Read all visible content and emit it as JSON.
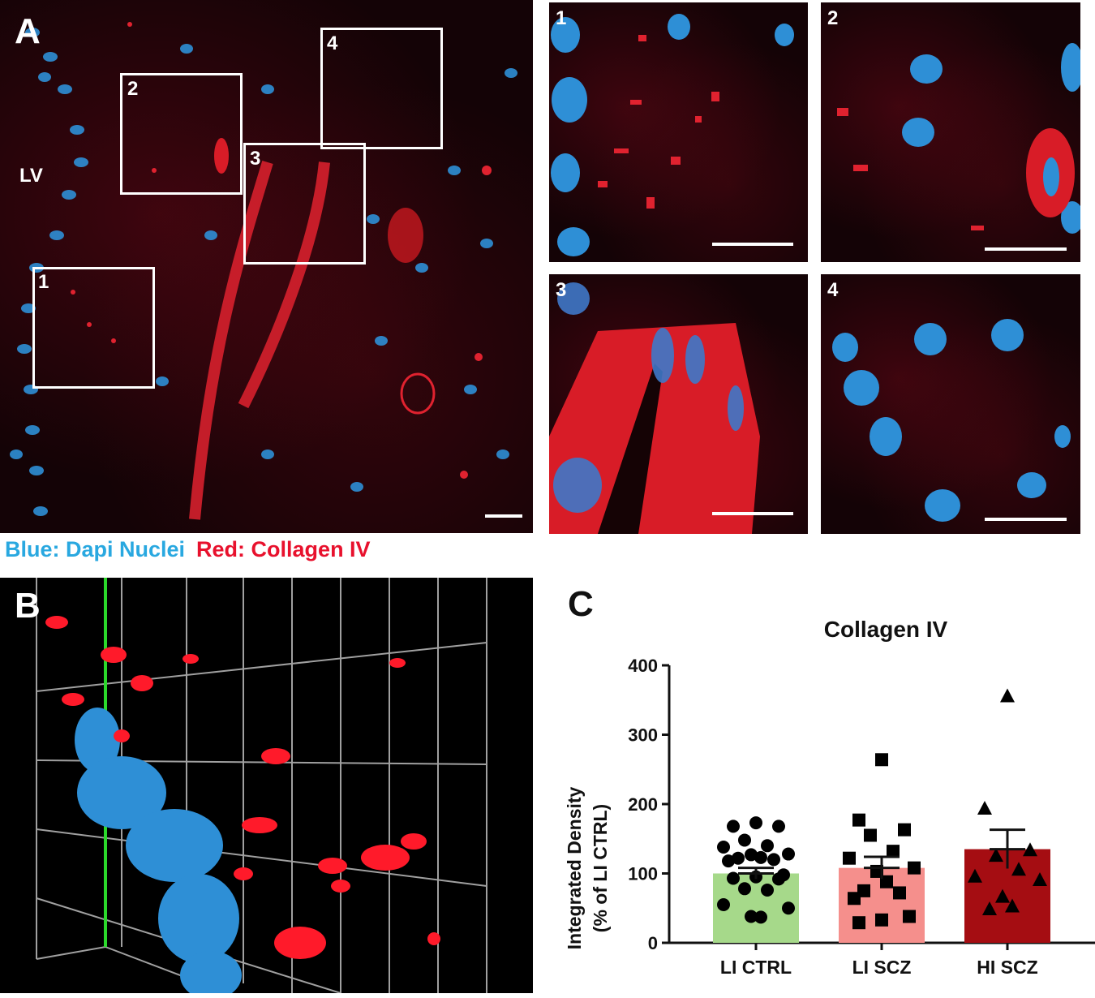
{
  "panel_a": {
    "label": "A",
    "lv_label": "LV",
    "box_labels": [
      "1",
      "2",
      "3",
      "4"
    ],
    "inset_labels": [
      "1",
      "2",
      "3",
      "4"
    ]
  },
  "legend": {
    "blue_text": "Blue: Dapi Nuclei",
    "red_text": "Red: Collagen IV",
    "blue_color": "#29a8e0",
    "red_color": "#e8112d"
  },
  "panel_b": {
    "label": "B"
  },
  "panel_c": {
    "label": "C"
  },
  "chart_data": {
    "type": "bar",
    "title": "Collagen IV",
    "ylabel_line1": "Integrated Density",
    "ylabel_line2": "(% of LI CTRL)",
    "xlabel": "",
    "ylim": [
      0,
      400
    ],
    "yticks": [
      "0",
      "100",
      "200",
      "300",
      "400"
    ],
    "categories": [
      "LI CTRL",
      "LI SCZ",
      "HI SCZ"
    ],
    "values": [
      100,
      108,
      135
    ],
    "sem": [
      8,
      16,
      28
    ],
    "bar_colors": [
      "#a6d98a",
      "#f58f8c",
      "#a50d12"
    ],
    "marker_shapes": [
      "circle",
      "square",
      "triangle"
    ],
    "points": [
      [
        173,
        168,
        168,
        148,
        140,
        138,
        128,
        127,
        123,
        122,
        120,
        118,
        98,
        95,
        93,
        92,
        78,
        76,
        55,
        50,
        38,
        37
      ],
      [
        264,
        177,
        163,
        155,
        132,
        122,
        108,
        103,
        88,
        75,
        72,
        64,
        38,
        33,
        29
      ],
      [
        355,
        193,
        133,
        125,
        105,
        95,
        90,
        66,
        52,
        48
      ]
    ]
  }
}
